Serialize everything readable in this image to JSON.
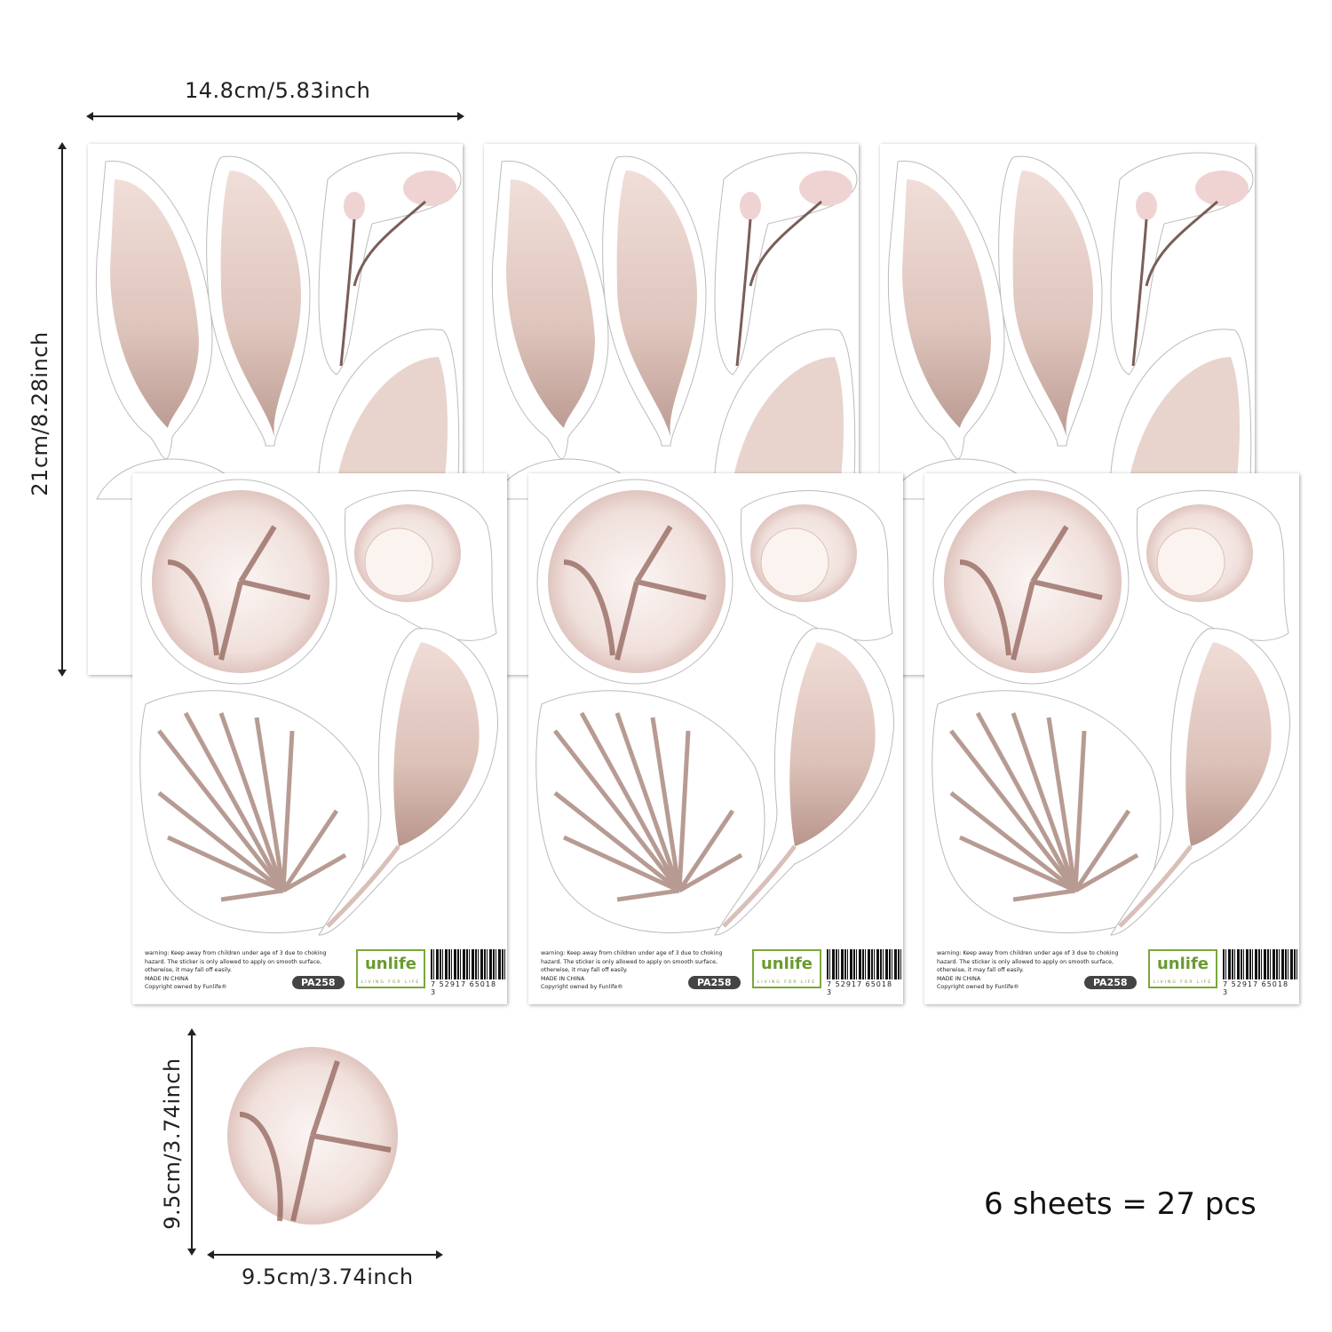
{
  "dimensions": {
    "sheet_width": "14.8cm/5.83inch",
    "sheet_height": "21cm/8.28inch",
    "sticker_height": "9.5cm/3.74inch",
    "sticker_width": "9.5cm/3.74inch"
  },
  "sheet": {
    "warning": "warning: Keep away from children under age of 3 due to choking hazard. The sticker is only allowed to apply on smooth surface, otherwise, it may fall off easily.",
    "made_in": "MADE IN CHINA",
    "copyright": "Copyright owned by Funlife®",
    "code": "PA258",
    "brand_logo": "unlife",
    "brand_tagline": "LIVING FOR LIFE",
    "barcode_number": "7 52917 65018 3"
  },
  "summary": "6 sheets = 27 pcs",
  "colors": {
    "petal": "#f3e6e2",
    "shade": "#c9a8a0",
    "stem": "#8a6a62",
    "brand_green": "#6a9a30"
  }
}
